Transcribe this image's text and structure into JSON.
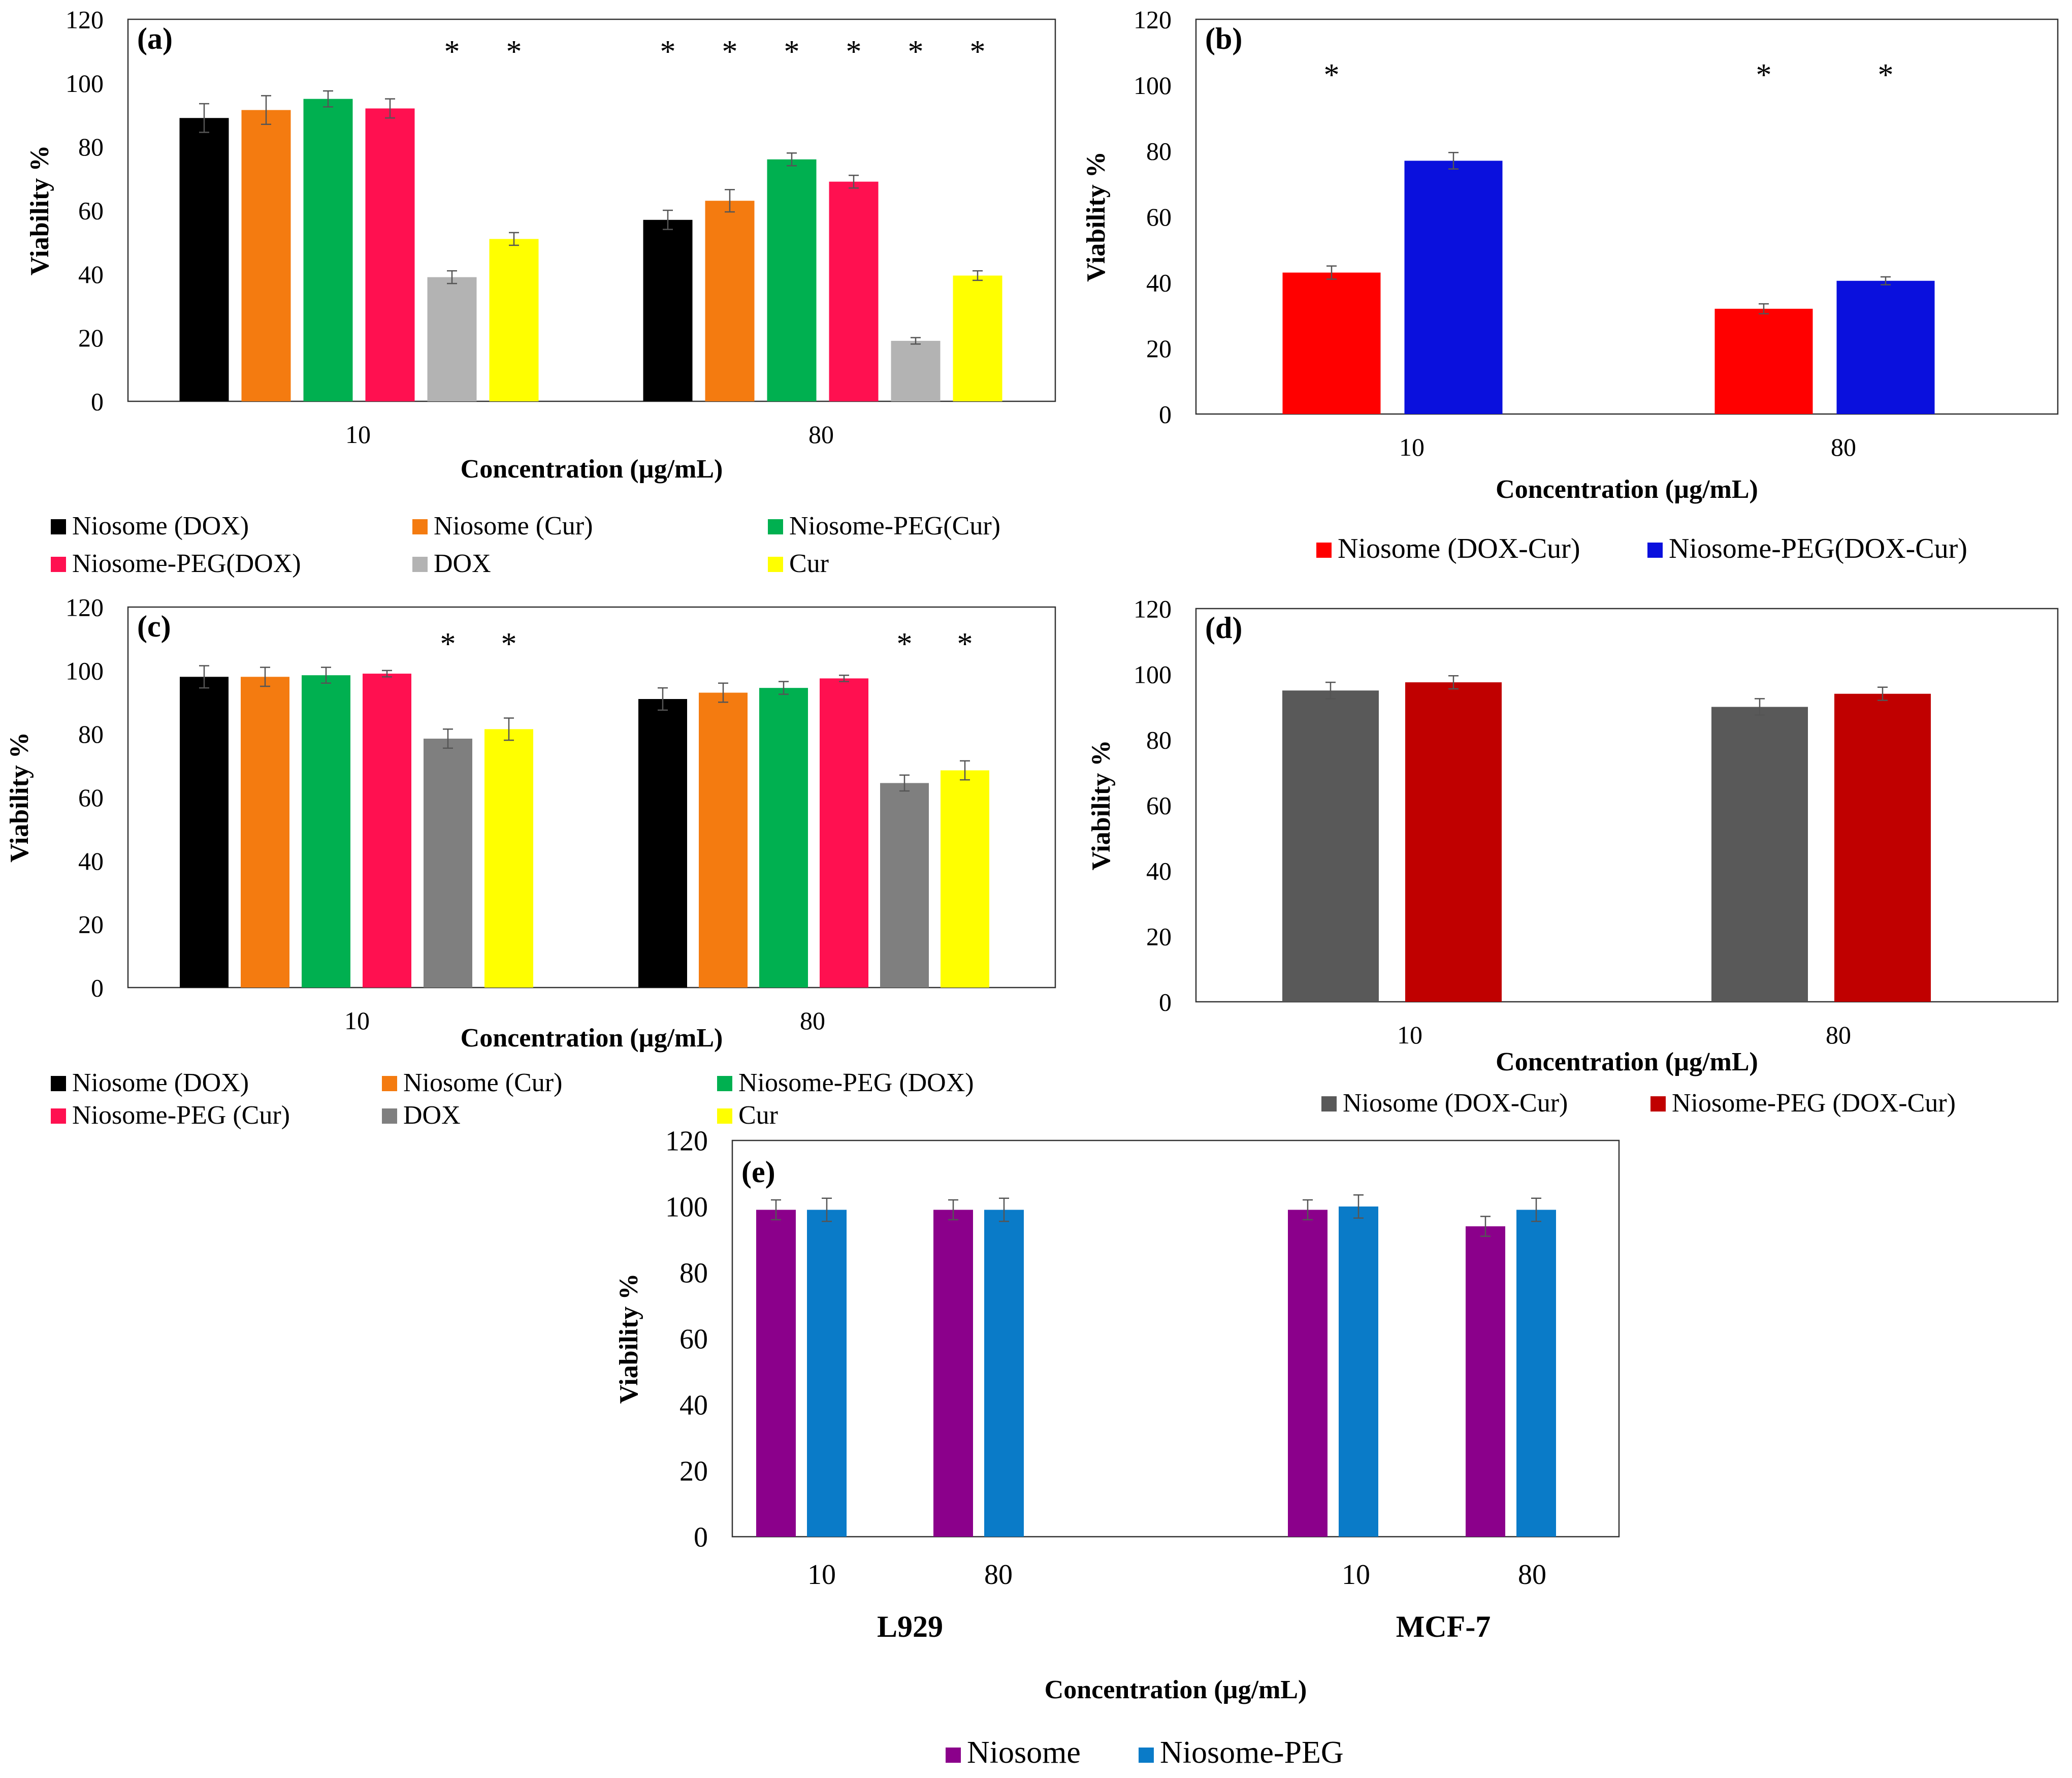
{
  "chart_data": [
    {
      "id": "a",
      "type": "bar",
      "panel_label": "(a)",
      "ylabel": "Viability %",
      "xlabel": "Concentration (µg/mL)",
      "ylim": [
        0,
        120
      ],
      "yticks": [
        "0",
        "20",
        "40",
        "60",
        "80",
        "100",
        "120"
      ],
      "categories": [
        "10",
        "80"
      ],
      "series": [
        {
          "name": "Niosome (DOX)",
          "color": "#000000",
          "values": [
            89,
            57
          ],
          "errors": [
            4.5,
            3
          ]
        },
        {
          "name": "Niosome (Cur)",
          "color": "#F47B10",
          "values": [
            91.5,
            63
          ],
          "errors": [
            4.5,
            3.5
          ]
        },
        {
          "name": "Niosome-PEG(Cur)",
          "color": "#00B050",
          "values": [
            95,
            76
          ],
          "errors": [
            2.5,
            2
          ]
        },
        {
          "name": "Niosome-PEG(DOX)",
          "color": "#FF1050",
          "values": [
            92,
            69
          ],
          "errors": [
            3,
            2
          ]
        },
        {
          "name": "DOX",
          "color": "#B3B3B3",
          "values": [
            39,
            19
          ],
          "errors": [
            2,
            1
          ]
        },
        {
          "name": "Cur",
          "color": "#FFFF00",
          "values": [
            51,
            39.5
          ],
          "errors": [
            2,
            1.5
          ]
        }
      ],
      "significance": [
        [
          "",
          "",
          "",
          "",
          "*",
          "*"
        ],
        [
          "*",
          "*",
          "*",
          "*",
          "*",
          "*"
        ]
      ]
    },
    {
      "id": "b",
      "type": "bar",
      "panel_label": "(b)",
      "ylabel": "Viability %",
      "xlabel": "Concentration (µg/mL)",
      "ylim": [
        0,
        120
      ],
      "yticks": [
        "0",
        "20",
        "40",
        "60",
        "80",
        "100",
        "120"
      ],
      "categories": [
        "10",
        "80"
      ],
      "series": [
        {
          "name": "Niosome (DOX-Cur)",
          "color": "#FF0000",
          "values": [
            43,
            32
          ],
          "errors": [
            2,
            1.5
          ]
        },
        {
          "name": "Niosome-PEG(DOX-Cur)",
          "color": "#0A10DD",
          "values": [
            77,
            40.5
          ],
          "errors": [
            2.5,
            1.2
          ]
        }
      ],
      "significance": [
        [
          "*",
          ""
        ],
        [
          "*",
          "*"
        ]
      ]
    },
    {
      "id": "c",
      "type": "bar",
      "panel_label": "(c)",
      "ylabel": "Viability %",
      "xlabel": "Concentration (µg/mL)",
      "ylim": [
        0,
        120
      ],
      "yticks": [
        "0",
        "20",
        "40",
        "60",
        "80",
        "100",
        "120"
      ],
      "categories": [
        "10",
        "80"
      ],
      "series": [
        {
          "name": "Niosome (DOX)",
          "color": "#000000",
          "values": [
            98,
            91
          ],
          "errors": [
            3.5,
            3.5
          ]
        },
        {
          "name": "Niosome (Cur)",
          "color": "#F47B10",
          "values": [
            98,
            93
          ],
          "errors": [
            3,
            3
          ]
        },
        {
          "name": "Niosome-PEG (DOX)",
          "color": "#00B050",
          "values": [
            98.5,
            94.5
          ],
          "errors": [
            2.5,
            2
          ]
        },
        {
          "name": "Niosome-PEG (Cur)",
          "color": "#FF1050",
          "values": [
            99,
            97.5
          ],
          "errors": [
            1,
            1
          ]
        },
        {
          "name": "DOX",
          "color": "#7F7F7F",
          "values": [
            78.5,
            64.5
          ],
          "errors": [
            3,
            2.5
          ]
        },
        {
          "name": "Cur",
          "color": "#FFFF00",
          "values": [
            81.5,
            68.5
          ],
          "errors": [
            3.5,
            3
          ]
        }
      ],
      "significance": [
        [
          "",
          "",
          "",
          "",
          "*",
          "*"
        ],
        [
          "",
          "",
          "",
          "",
          "*",
          "*"
        ]
      ]
    },
    {
      "id": "d",
      "type": "bar",
      "panel_label": "(d)",
      "ylabel": "Viability %",
      "xlabel": "Concentration (µg/mL)",
      "ylim": [
        0,
        120
      ],
      "yticks": [
        "0",
        "20",
        "40",
        "60",
        "80",
        "100",
        "120"
      ],
      "categories": [
        "10",
        "80"
      ],
      "series": [
        {
          "name": "Niosome (DOX-Cur)",
          "color": "#595959",
          "values": [
            95,
            90
          ],
          "errors": [
            2.5,
            2.5
          ]
        },
        {
          "name": "Niosome-PEG (DOX-Cur)",
          "color": "#C00000",
          "values": [
            97.5,
            94
          ],
          "errors": [
            2,
            2
          ]
        }
      ],
      "significance": [
        [
          "",
          ""
        ],
        [
          "",
          ""
        ]
      ]
    },
    {
      "id": "e",
      "type": "bar",
      "panel_label": "(e)",
      "ylabel": "Viability %",
      "xlabel": "Concentration (µg/mL)",
      "ylim": [
        0,
        120
      ],
      "yticks": [
        "0",
        "20",
        "40",
        "60",
        "80",
        "100",
        "120"
      ],
      "categories": [
        "10",
        "80",
        "10",
        "80"
      ],
      "groups": [
        "L929",
        "MCF-7"
      ],
      "series": [
        {
          "name": "Niosome",
          "color": "#8B008B",
          "values": [
            99,
            99,
            99,
            94
          ],
          "errors": [
            3,
            3,
            3,
            3
          ]
        },
        {
          "name": "Niosome-PEG",
          "color": "#0A7BC8",
          "values": [
            99,
            99,
            100,
            99
          ],
          "errors": [
            3.5,
            3.5,
            3.5,
            3.5
          ]
        }
      ],
      "significance": [
        [
          "",
          ""
        ],
        [
          "",
          ""
        ],
        [
          "",
          ""
        ],
        [
          "",
          ""
        ]
      ]
    }
  ]
}
